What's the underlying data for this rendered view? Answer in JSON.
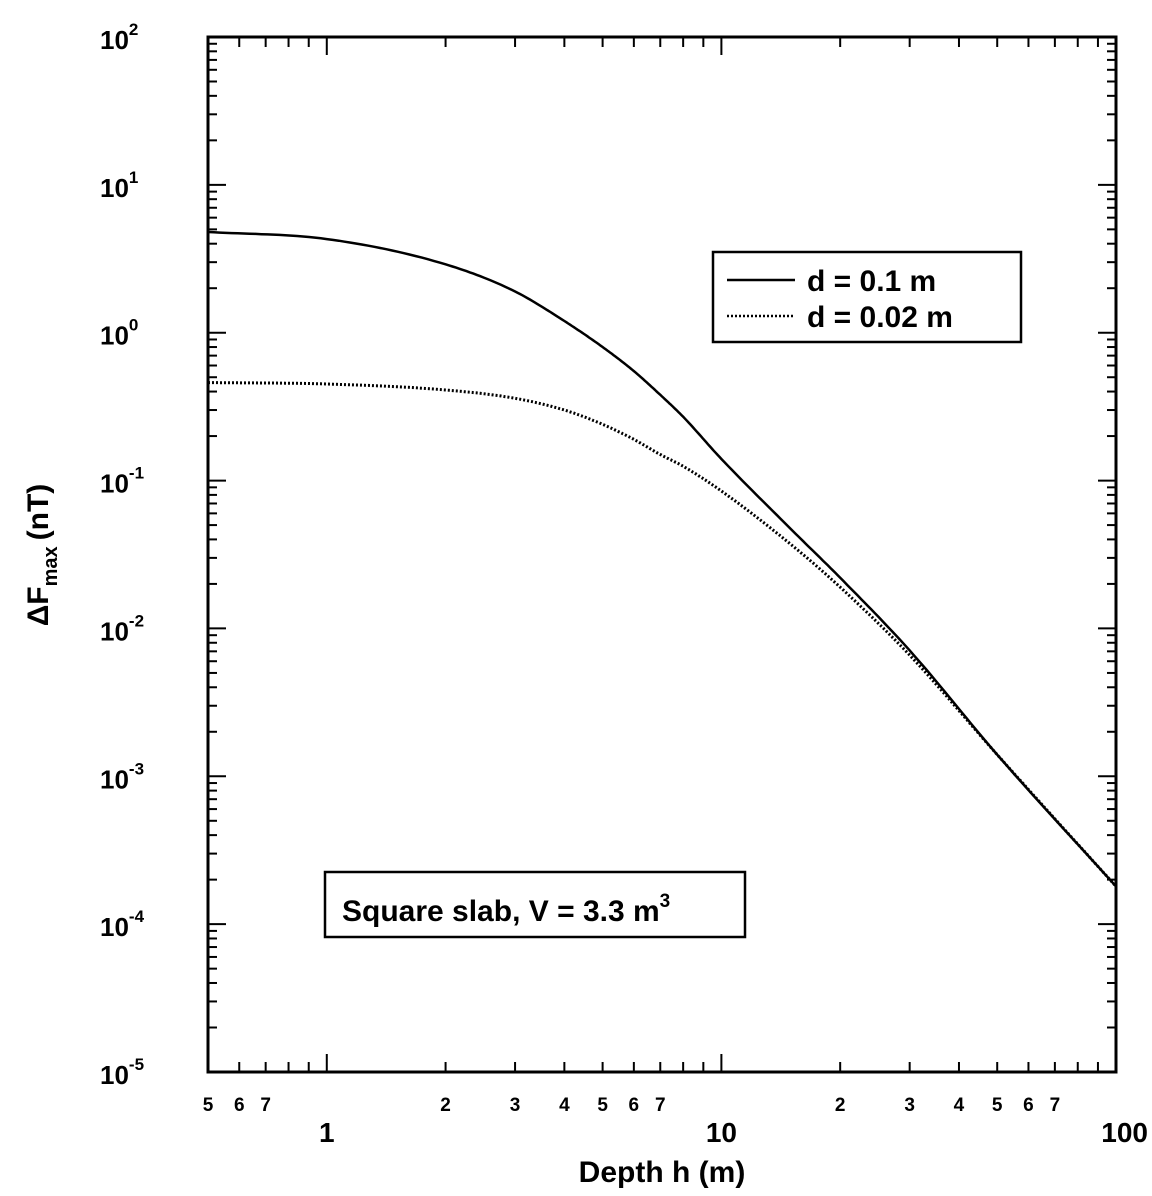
{
  "chart_data": {
    "type": "line",
    "title": "",
    "xlabel": "Depth h (m)",
    "ylabel": "ΔF",
    "ylabel_subscript": "max",
    "ylabel_unit": "(nT)",
    "xscale": "log",
    "yscale": "log",
    "xlim": [
      0.5,
      100
    ],
    "ylim": [
      1e-05,
      100
    ],
    "x_major_tick_labels": [
      "1",
      "10",
      "100"
    ],
    "x_minor_tick_labels": [
      "5",
      "6",
      "7",
      "2",
      "3",
      "4",
      "5",
      "6",
      "7",
      "2",
      "3",
      "4",
      "5",
      "6",
      "7"
    ],
    "y_tick_labels": [
      {
        "base": "10",
        "exp": "2"
      },
      {
        "base": "10",
        "exp": "1"
      },
      {
        "base": "10",
        "exp": "0"
      },
      {
        "base": "10",
        "exp": "-1"
      },
      {
        "base": "10",
        "exp": "-2"
      },
      {
        "base": "10",
        "exp": "-3"
      },
      {
        "base": "10",
        "exp": "-4"
      },
      {
        "base": "10",
        "exp": "-5"
      }
    ],
    "grid": false,
    "legend_position": "top-right",
    "series": [
      {
        "name": "d = 0.1 m",
        "style": "solid",
        "x": [
          0.5,
          1,
          2,
          3,
          4,
          5,
          6,
          7,
          8,
          10,
          15,
          20,
          30,
          50,
          100
        ],
        "y": [
          4.8,
          4.3,
          2.9,
          1.9,
          1.2,
          0.8,
          0.55,
          0.38,
          0.27,
          0.14,
          0.047,
          0.022,
          0.0071,
          0.0014,
          0.00018
        ]
      },
      {
        "name": "d = 0.02 m",
        "style": "dotted",
        "x": [
          0.5,
          1,
          2,
          3,
          4,
          5,
          6,
          7,
          8,
          10,
          15,
          20,
          30,
          50,
          100
        ],
        "y": [
          0.46,
          0.45,
          0.41,
          0.36,
          0.3,
          0.24,
          0.19,
          0.15,
          0.125,
          0.085,
          0.037,
          0.019,
          0.0066,
          0.0014,
          0.00018
        ]
      }
    ],
    "annotation": {
      "text": "Square slab, V = 3.3 m",
      "superscript": "3"
    }
  }
}
